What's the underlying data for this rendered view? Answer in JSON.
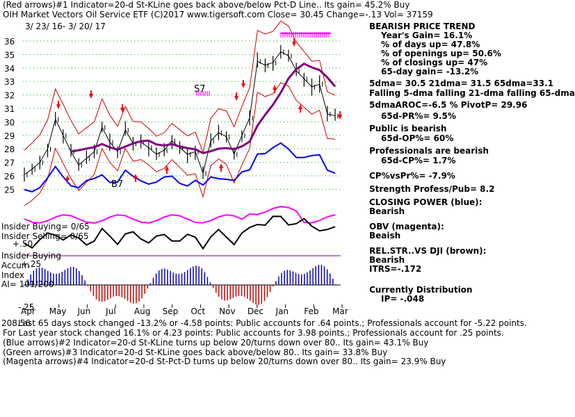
{
  "header": {
    "line1": "(Red arrows)#1 Indicator=20-d St-KLine goes back above/below Pct-D Line.. Its gain= 45.2% Buy",
    "line2": "OIH   Market Vectors Oil Service ETF  (C)2017 www.tigersoft.com    Close=  30.45  Change=-.13 Vol=  37159",
    "date_range": "3/ 23/ 16-  3/ 20/ 17"
  },
  "right_panel": {
    "title": "BEARISH PRICE TREND",
    "items": [
      "Year's Gain= 16.1%",
      "% of days up= 47.8%",
      "% of openings up= 50.6%",
      "% of closings up= 47%",
      "65-day gain= -13.2%",
      "5dma= 30.5 21dma= 31.5 65dma=33.1",
      "Falling 5-dma falling 21-dma falling 65-dma",
      "5dmaAROC=-6.5 %  PivotP= 29.96",
      "65d-PR%= 9.5%",
      "Public is bearish",
      "65d-OP%= 60%",
      "Professionals are bearish",
      "65d-CP%= 1.7%",
      "CP%vsPr%= -7.9%",
      "Strength Profess/Pub= 8.2",
      "CLOSING POWER (blue):",
      "Bearish",
      "OBV (magenta):",
      "Beaish",
      "REL.STR..VS DJI (brown):",
      "Bearish",
      "ITRS=-.172",
      "Currently Distribution",
      "IP= -.048"
    ]
  },
  "left_labels": {
    "insider_buying": "Insider Buying= 0/65",
    "insider_selling": "Insider Selling= 0/65",
    "plus50": "+.50",
    "insider_buying2": "Insider Buying",
    "accum": "Accum",
    "plus25": "+.25",
    "index": "Index",
    "ai": "AI= 101/200",
    "minus25": "-.25",
    "bottom_left": "208.56"
  },
  "footer": [
    "Last 65 days stock changed -13.2% or -4.58 points:  Public accounts for  .64 points.;  Professionals account for -5.22 points.",
    "For Last year stock changed  16.1% or  4.23 points:  Public accounts for  3.98 points.;  Professionals account for  .25 points.",
    "(Blue arrows)#2 Indicator=20-d St-KLine turns up below 20/turns down over 80.. Its gain= 43.1% Buy",
    "(Green arrows)#3 Indicator=20-d St-KLine goes back above/below 80.. Its gain= 33.8% Buy",
    "(Magenta arrows)#4 Indicator=20-d St-Pct-D turns up below 20/turns down over 80.. Its gain= 23.9% Buy"
  ],
  "annotations": {
    "s7": "S7",
    "b7": "B7"
  },
  "colors": {
    "price": "#000000",
    "closing_power": "#0000ff",
    "obv": "#ff00ff",
    "ma65": "#800080",
    "band": "#cc0000",
    "accum_pos": "#0000cc",
    "accum_neg": "#cc0000",
    "grid": "#00aa00",
    "signal_up": "#ff0000"
  },
  "chart_data": {
    "type": "line",
    "title": "OIH   Market Vectors Oil Service ETF",
    "ylim": [
      24,
      37
    ],
    "y_ticks": [
      "36",
      "35",
      "34",
      "33",
      "32",
      "31",
      "30",
      "29",
      "28",
      "27",
      "26",
      "25"
    ],
    "x_ticks": [
      "Apr",
      "May",
      "Jun",
      "Jul",
      "Aug",
      "Sep",
      "Oct",
      "Nov",
      "Dec",
      "Jan",
      "Feb",
      "Mar"
    ],
    "series": [
      {
        "values": [
          26.1,
          26.5,
          27.0,
          28.0,
          30.2,
          29.0,
          27.8,
          26.8,
          27.3,
          27.8,
          29.6,
          28.5,
          27.8,
          29.4,
          28.4,
          28.5,
          28.1,
          27.6,
          27.9,
          28.6,
          28.1,
          27.6,
          27.8,
          26.2,
          28.6,
          29.2,
          28.9,
          27.6,
          29.0,
          30.3,
          34.5,
          34.2,
          34.4,
          35.2,
          34.9,
          33.8,
          33.2,
          32.6,
          32.8,
          30.6,
          30.45
        ]
      },
      {
        "name": "5dma",
        "values": []
      }
    ]
  }
}
